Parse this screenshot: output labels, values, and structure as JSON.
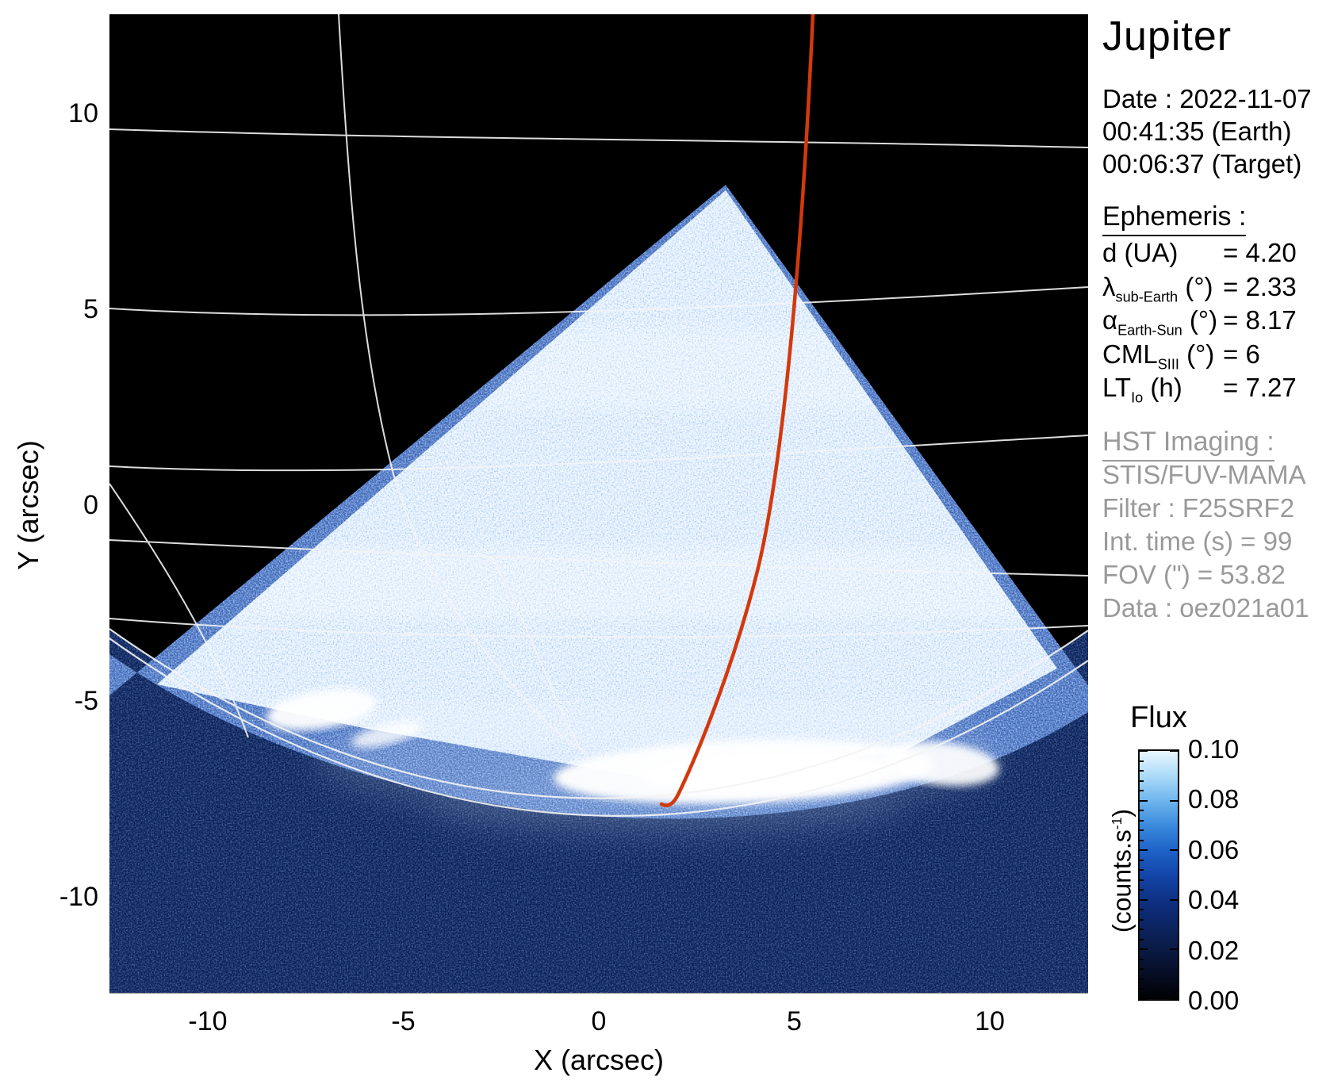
{
  "title": "Jupiter",
  "info": {
    "date_lines": [
      "Date : 2022-11-07",
      "00:41:35 (Earth)",
      "00:06:37 (Target)"
    ]
  },
  "ephemeris": {
    "heading": "Ephemeris :",
    "rows": [
      {
        "symbol": "d",
        "subscript": "",
        "unit": " (UA)",
        "value": "= 4.20"
      },
      {
        "symbol": "λ",
        "subscript": "sub-Earth",
        "unit": " (°)",
        "value": "= 2.33"
      },
      {
        "symbol": "α",
        "subscript": "Earth-Sun",
        "unit": " (°)",
        "value": "= 8.17"
      },
      {
        "symbol": "CML",
        "subscript": "SIII",
        "unit": " (°)",
        "value": "= 6"
      },
      {
        "symbol": "LT",
        "subscript": "Io",
        "unit": " (h)",
        "value": "= 7.27"
      }
    ]
  },
  "hst": {
    "heading": "HST Imaging :",
    "lines": [
      "STIS/FUV-MAMA",
      "Filter : F25SRF2",
      "Int. time (s) = 99",
      "FOV (\") = 53.82",
      "Data : oez021a01"
    ]
  },
  "axes": {
    "x_label": "X (arcsec)",
    "x_ticks": [
      "-10",
      "-5",
      "0",
      "5",
      "10"
    ],
    "y_label": "Y (arcsec)",
    "y_ticks": [
      "10",
      "5",
      "0",
      "-5",
      "-10"
    ]
  },
  "colorbar": {
    "title": "Flux",
    "unit_prefix": "(counts.s",
    "unit_sup": "-1",
    "unit_suffix": ")",
    "ticks": [
      "0.10",
      "0.08",
      "0.06",
      "0.04",
      "0.02",
      "0.00"
    ]
  },
  "colors": {
    "track_red": "#d2390c",
    "muted_text": "#9a9a9a",
    "flux_scale_low": "#010103",
    "flux_scale_mid": "#1345a8",
    "flux_scale_high": "#eaf7fe"
  },
  "chart_data": {
    "type": "heatmap",
    "title": "Jupiter",
    "xlabel": "X (arcsec)",
    "ylabel": "Y (arcsec)",
    "xlim": [
      -12.5,
      12.5
    ],
    "ylim": [
      -12.5,
      12.5
    ],
    "x_ticks": [
      -10,
      -5,
      0,
      5,
      10
    ],
    "y_ticks": [
      10,
      5,
      0,
      -5,
      -10
    ],
    "colorbar": {
      "label": "Flux (counts.s-1)",
      "range": [
        0.0,
        0.1
      ],
      "ticks": [
        0.0,
        0.02,
        0.04,
        0.06,
        0.08,
        0.1
      ]
    },
    "description": "HST STIS/FUV-MAMA far-UV image of Jupiter north polar region: bright triangular detector wedge of blue/white noise with apex near (0.8 arcsec X, 8.1 arcsec Y scaled), bright white auroral oval emission arc near Y = -6 to -7.5 arcsec spanning X = -8 to +9 arcsec, white planetary lat/long graticule curves, and a red instrument track curve from image top descending to the auroral oval near X = 2, Y = -7.5."
  }
}
